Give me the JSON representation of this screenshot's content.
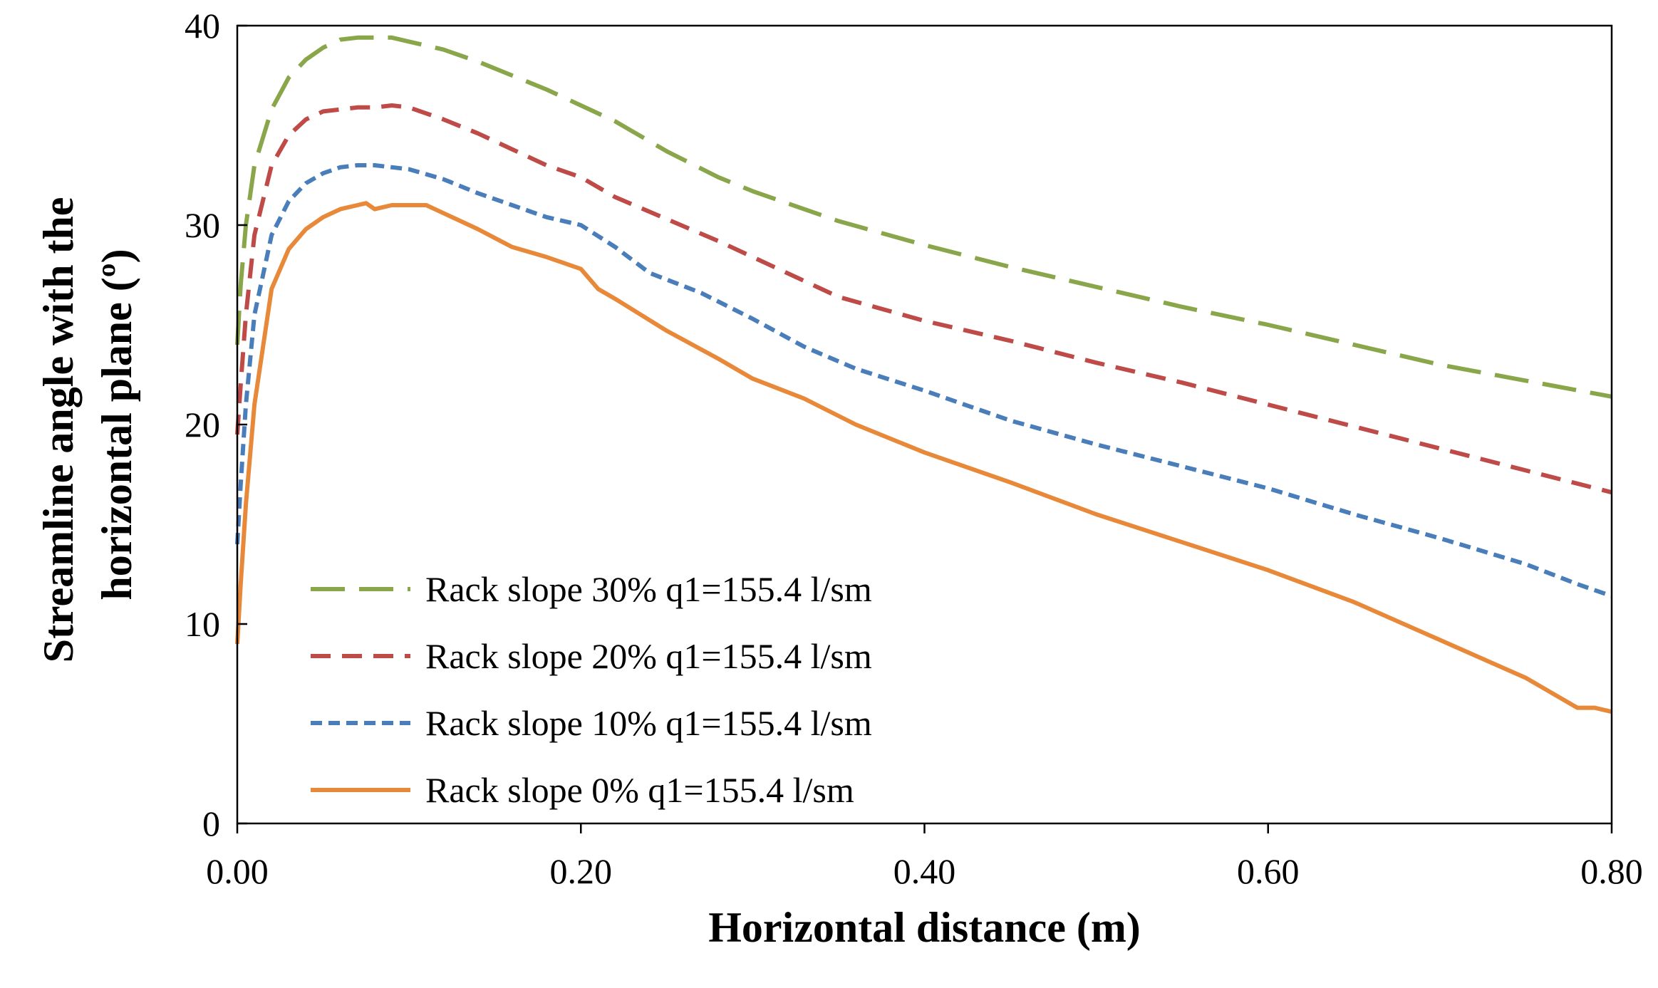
{
  "chart_data": {
    "type": "line",
    "title": "",
    "xlabel": "Horizontal distance (m)",
    "ylabel_lines": [
      "Streamline angle with the",
      "horizontal plane (º)"
    ],
    "xlim": [
      0,
      0.8
    ],
    "ylim": [
      0,
      40
    ],
    "x_ticks": [
      0,
      0.2,
      0.4,
      0.6,
      0.8
    ],
    "x_tick_labels": [
      "0.00",
      "0.20",
      "0.40",
      "0.60",
      "0.80"
    ],
    "y_ticks": [
      0,
      10,
      20,
      30,
      40
    ],
    "y_tick_labels": [
      "0",
      "10",
      "20",
      "30",
      "40"
    ],
    "grid": false,
    "legend_position": "bottom-left",
    "series": [
      {
        "name": "Rack slope 30% q1=155.4 l/sm",
        "color": "#8AA64A",
        "dash": "long-dash",
        "x": [
          0,
          0.002,
          0.005,
          0.01,
          0.02,
          0.03,
          0.04,
          0.05,
          0.06,
          0.07,
          0.08,
          0.09,
          0.1,
          0.12,
          0.14,
          0.16,
          0.18,
          0.2,
          0.22,
          0.25,
          0.28,
          0.3,
          0.35,
          0.4,
          0.45,
          0.5,
          0.55,
          0.6,
          0.65,
          0.7,
          0.75,
          0.8
        ],
        "y": [
          24,
          27,
          30,
          33,
          35.8,
          37.4,
          38.3,
          38.9,
          39.3,
          39.4,
          39.4,
          39.4,
          39.2,
          38.8,
          38.2,
          37.5,
          36.8,
          36,
          35.2,
          33.7,
          32.4,
          31.7,
          30.2,
          29,
          27.9,
          26.9,
          25.9,
          25,
          24,
          23,
          22.2,
          21.4
        ]
      },
      {
        "name": "Rack slope 20% q1=155.4 l/sm",
        "color": "#BE4B48",
        "dash": "medium-dash",
        "x": [
          0,
          0.002,
          0.005,
          0.01,
          0.02,
          0.03,
          0.04,
          0.05,
          0.06,
          0.07,
          0.08,
          0.09,
          0.1,
          0.12,
          0.14,
          0.16,
          0.18,
          0.2,
          0.22,
          0.25,
          0.28,
          0.3,
          0.35,
          0.4,
          0.45,
          0.5,
          0.55,
          0.6,
          0.65,
          0.7,
          0.75,
          0.8
        ],
        "y": [
          19.5,
          22,
          25.5,
          29.5,
          33,
          34.5,
          35.3,
          35.7,
          35.8,
          35.9,
          35.9,
          36,
          35.9,
          35.3,
          34.6,
          33.8,
          33,
          32.4,
          31.4,
          30.3,
          29.2,
          28.4,
          26.4,
          25.2,
          24.2,
          23.1,
          22.1,
          21,
          19.9,
          18.8,
          17.7,
          16.6
        ]
      },
      {
        "name": "Rack slope 10% q1=155.4 l/sm",
        "color": "#4A7EBB",
        "dash": "short-dash",
        "x": [
          0,
          0.002,
          0.005,
          0.01,
          0.02,
          0.03,
          0.04,
          0.05,
          0.06,
          0.07,
          0.08,
          0.09,
          0.1,
          0.12,
          0.14,
          0.16,
          0.18,
          0.2,
          0.22,
          0.24,
          0.27,
          0.3,
          0.33,
          0.36,
          0.4,
          0.45,
          0.5,
          0.55,
          0.6,
          0.65,
          0.7,
          0.75,
          0.78,
          0.8
        ],
        "y": [
          14,
          17,
          21,
          25.5,
          29.5,
          31.2,
          32.1,
          32.6,
          32.9,
          33,
          33,
          32.9,
          32.8,
          32.3,
          31.6,
          31,
          30.4,
          30,
          28.9,
          27.6,
          26.6,
          25.3,
          23.9,
          22.8,
          21.7,
          20.2,
          19,
          17.9,
          16.8,
          15.5,
          14.3,
          13,
          12,
          11.4
        ]
      },
      {
        "name": "Rack slope 0% q1=155.4 l/sm",
        "color": "#E8893A",
        "dash": "solid",
        "x": [
          0,
          0.002,
          0.005,
          0.01,
          0.02,
          0.03,
          0.04,
          0.05,
          0.06,
          0.07,
          0.075,
          0.08,
          0.09,
          0.1,
          0.11,
          0.12,
          0.14,
          0.16,
          0.18,
          0.2,
          0.21,
          0.22,
          0.25,
          0.28,
          0.3,
          0.33,
          0.36,
          0.4,
          0.45,
          0.5,
          0.55,
          0.6,
          0.65,
          0.7,
          0.75,
          0.78,
          0.79,
          0.8
        ],
        "y": [
          9,
          12,
          16,
          21,
          26.8,
          28.8,
          29.8,
          30.4,
          30.8,
          31,
          31.1,
          30.8,
          31,
          31,
          31,
          30.6,
          29.8,
          28.9,
          28.4,
          27.8,
          26.8,
          26.3,
          24.7,
          23.3,
          22.3,
          21.3,
          20,
          18.6,
          17.1,
          15.5,
          14.1,
          12.7,
          11.1,
          9.2,
          7.3,
          5.8,
          5.8,
          5.6
        ]
      }
    ]
  }
}
